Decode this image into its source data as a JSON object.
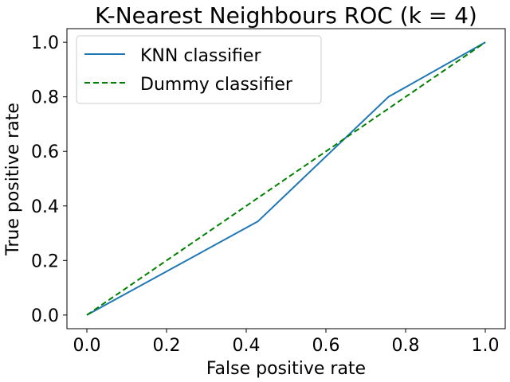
{
  "chart_data": {
    "type": "line",
    "title": "K-Nearest Neighbours ROC (k = 4)",
    "xlabel": "False positive rate",
    "ylabel": "True positive rate",
    "xlim": [
      -0.05,
      1.05
    ],
    "ylim": [
      -0.05,
      1.05
    ],
    "xticks": [
      0.0,
      0.2,
      0.4,
      0.6,
      0.8,
      1.0
    ],
    "yticks": [
      0.0,
      0.2,
      0.4,
      0.6,
      0.8,
      1.0
    ],
    "tick_labels_x": [
      "0.0",
      "0.2",
      "0.4",
      "0.6",
      "0.8",
      "1.0"
    ],
    "tick_labels_y": [
      "0.0",
      "0.2",
      "0.4",
      "0.6",
      "0.8",
      "1.0"
    ],
    "grid": false,
    "legend": "upper-left",
    "series": [
      {
        "name": "KNN classifier",
        "color": "#1f77b4",
        "style": "solid",
        "x": [
          0.0,
          0.429,
          0.757,
          1.0
        ],
        "y": [
          0.0,
          0.343,
          0.8,
          1.0
        ]
      },
      {
        "name": "Dummy classifier",
        "color": "#008000",
        "style": "dashed",
        "x": [
          0.0,
          1.0
        ],
        "y": [
          0.0,
          1.0
        ]
      }
    ]
  }
}
